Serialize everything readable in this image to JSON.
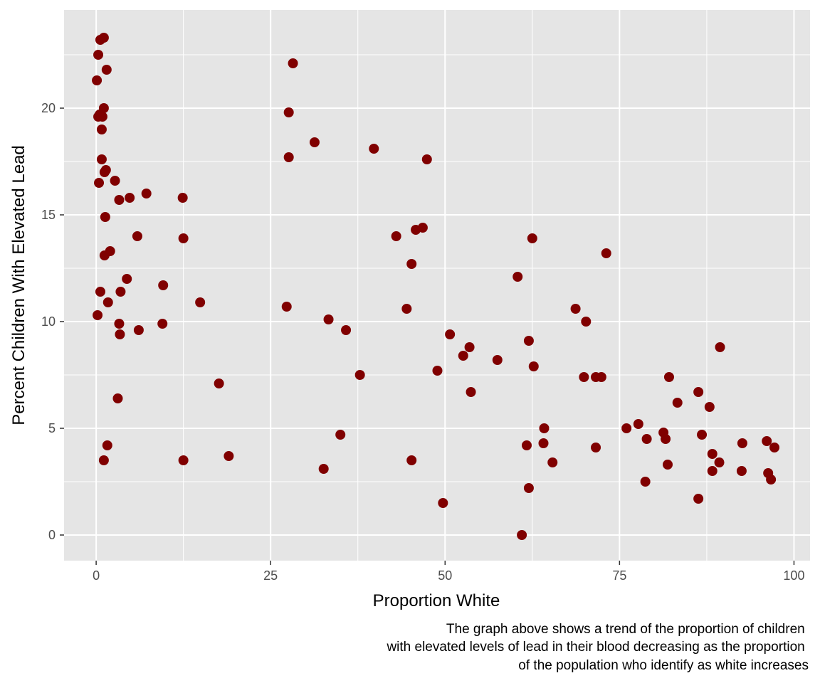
{
  "chart_data": {
    "type": "scatter",
    "xlabel": "Proportion White",
    "ylabel": "Percent Children With Elevated Lead",
    "xlim": [
      -4.6,
      102.3
    ],
    "ylim": [
      -1.2,
      24.6
    ],
    "xticks": [
      0,
      25,
      50,
      75,
      100
    ],
    "yticks": [
      0,
      5,
      10,
      15,
      20
    ],
    "grid": true,
    "point_color": "#800000",
    "panel_background": "#e5e5e5",
    "caption": [
      "The graph above shows a trend of the proportion of children ",
      "with elevated levels of lead in their blood decreasing as the proportion ",
      "of the population who identify as white increases"
    ],
    "points": [
      [
        0.6,
        23.2
      ],
      [
        1.1,
        23.3
      ],
      [
        0.3,
        22.5
      ],
      [
        1.5,
        21.8
      ],
      [
        0.1,
        21.3
      ],
      [
        1.1,
        20.0
      ],
      [
        0.3,
        19.6
      ],
      [
        0.9,
        19.6
      ],
      [
        0.5,
        19.7
      ],
      [
        0.8,
        19.0
      ],
      [
        0.8,
        17.6
      ],
      [
        1.4,
        17.1
      ],
      [
        1.2,
        17.0
      ],
      [
        0.4,
        16.5
      ],
      [
        2.7,
        16.6
      ],
      [
        3.3,
        15.7
      ],
      [
        4.8,
        15.8
      ],
      [
        7.2,
        16.0
      ],
      [
        12.4,
        15.8
      ],
      [
        1.3,
        14.9
      ],
      [
        5.9,
        14.0
      ],
      [
        12.5,
        13.9
      ],
      [
        2.0,
        13.3
      ],
      [
        1.2,
        13.1
      ],
      [
        4.4,
        12.0
      ],
      [
        9.6,
        11.7
      ],
      [
        0.6,
        11.4
      ],
      [
        3.5,
        11.4
      ],
      [
        1.7,
        10.9
      ],
      [
        14.9,
        10.9
      ],
      [
        0.2,
        10.3
      ],
      [
        3.3,
        9.9
      ],
      [
        9.5,
        9.9
      ],
      [
        3.4,
        9.4
      ],
      [
        6.1,
        9.6
      ],
      [
        17.6,
        7.1
      ],
      [
        3.1,
        6.4
      ],
      [
        1.6,
        4.2
      ],
      [
        1.1,
        3.5
      ],
      [
        12.5,
        3.5
      ],
      [
        19.0,
        3.7
      ],
      [
        27.6,
        19.8
      ],
      [
        28.2,
        22.1
      ],
      [
        31.3,
        18.4
      ],
      [
        27.6,
        17.7
      ],
      [
        39.8,
        18.1
      ],
      [
        47.4,
        17.6
      ],
      [
        43.0,
        14.0
      ],
      [
        45.8,
        14.3
      ],
      [
        46.8,
        14.4
      ],
      [
        45.2,
        12.7
      ],
      [
        44.5,
        10.6
      ],
      [
        27.3,
        10.7
      ],
      [
        33.3,
        10.1
      ],
      [
        35.8,
        9.6
      ],
      [
        37.8,
        7.5
      ],
      [
        35.0,
        4.7
      ],
      [
        32.6,
        3.1
      ],
      [
        45.2,
        3.5
      ],
      [
        49.7,
        1.5
      ],
      [
        48.9,
        7.7
      ],
      [
        50.7,
        9.4
      ],
      [
        52.6,
        8.4
      ],
      [
        53.5,
        8.8
      ],
      [
        53.7,
        6.7
      ],
      [
        57.5,
        8.2
      ],
      [
        60.4,
        12.1
      ],
      [
        62.5,
        13.9
      ],
      [
        62.0,
        9.1
      ],
      [
        62.7,
        7.9
      ],
      [
        61.0,
        0.0
      ],
      [
        61.7,
        4.2
      ],
      [
        62.0,
        2.2
      ],
      [
        64.2,
        5.0
      ],
      [
        64.1,
        4.3
      ],
      [
        65.4,
        3.4
      ],
      [
        68.7,
        10.6
      ],
      [
        70.2,
        10.0
      ],
      [
        69.9,
        7.4
      ],
      [
        71.6,
        7.4
      ],
      [
        72.4,
        7.4
      ],
      [
        73.1,
        13.2
      ],
      [
        71.6,
        4.1
      ],
      [
        76.0,
        5.0
      ],
      [
        77.7,
        5.2
      ],
      [
        78.9,
        4.5
      ],
      [
        78.7,
        2.5
      ],
      [
        81.3,
        4.8
      ],
      [
        81.6,
        4.5
      ],
      [
        81.9,
        3.3
      ],
      [
        82.1,
        7.4
      ],
      [
        83.3,
        6.2
      ],
      [
        86.3,
        6.7
      ],
      [
        86.8,
        4.7
      ],
      [
        87.9,
        6.0
      ],
      [
        88.3,
        3.8
      ],
      [
        88.3,
        3.0
      ],
      [
        89.3,
        3.4
      ],
      [
        89.4,
        8.8
      ],
      [
        92.6,
        4.3
      ],
      [
        92.5,
        3.0
      ],
      [
        86.3,
        1.7
      ],
      [
        96.1,
        4.4
      ],
      [
        96.3,
        2.9
      ],
      [
        96.7,
        2.6
      ],
      [
        97.2,
        4.1
      ]
    ]
  }
}
